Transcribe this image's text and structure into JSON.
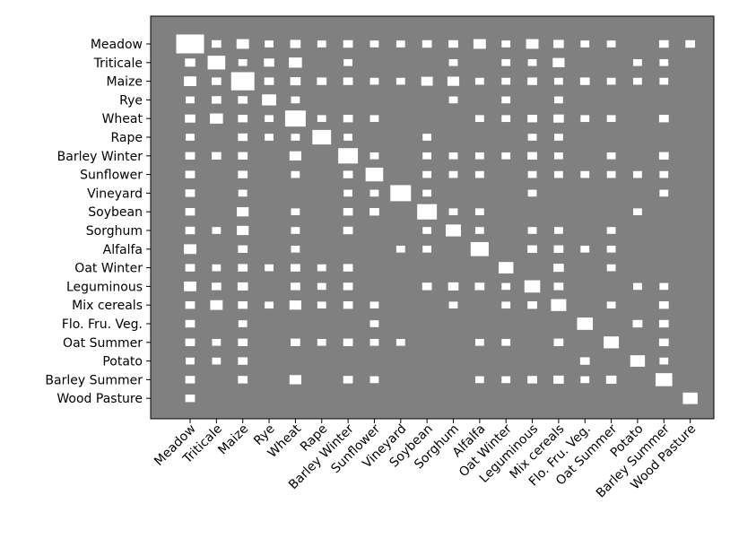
{
  "chart_data": {
    "type": "heatmap",
    "title": "",
    "xlabel": "",
    "ylabel": "",
    "categories": [
      "Meadow",
      "Triticale",
      "Maize",
      "Rye",
      "Wheat",
      "Rape",
      "Barley Winter",
      "Sunflower",
      "Vineyard",
      "Soybean",
      "Sorghum",
      "Alfalfa",
      "Oat Winter",
      "Leguminous",
      "Mix cereals",
      "Flo. Fru. Veg.",
      "Oat Summer",
      "Potato",
      "Barley Summer",
      "Wood Pasture"
    ],
    "x_tick_rotation_deg": 45,
    "background_color": "#808080",
    "mark_color": "#ffffff",
    "value_scale": "relative square area (1.0 = largest)",
    "cells": [
      {
        "row": "Meadow",
        "values": [
          1,
          0.12,
          0.2,
          0.1,
          0.14,
          0.1,
          0.12,
          0.1,
          0.1,
          0.12,
          0.12,
          0.2,
          0.1,
          0.2,
          0.14,
          0.1,
          0.1,
          0,
          0.12,
          0.12
        ]
      },
      {
        "row": "Triticale",
        "values": [
          0.14,
          0.4,
          0.1,
          0.14,
          0.22,
          0,
          0.1,
          0,
          0,
          0,
          0.1,
          0,
          0.1,
          0.1,
          0.18,
          0,
          0,
          0.1,
          0.1,
          0
        ]
      },
      {
        "row": "Maize",
        "values": [
          0.2,
          0.12,
          0.7,
          0.12,
          0.14,
          0.12,
          0.12,
          0.1,
          0.1,
          0.17,
          0.18,
          0.1,
          0.1,
          0.12,
          0.1,
          0.12,
          0.1,
          0.1,
          0.1,
          0
        ]
      },
      {
        "row": "Rye",
        "values": [
          0.1,
          0.12,
          0.12,
          0.26,
          0.1,
          0,
          0,
          0,
          0,
          0,
          0.1,
          0,
          0.1,
          0,
          0.1,
          0,
          0,
          0,
          0,
          0
        ]
      },
      {
        "row": "Wheat",
        "values": [
          0.14,
          0.22,
          0.12,
          0.1,
          0.55,
          0.1,
          0.12,
          0.1,
          0,
          0,
          0,
          0.1,
          0.1,
          0.12,
          0.14,
          0.1,
          0.1,
          0,
          0.12,
          0
        ]
      },
      {
        "row": "Rape",
        "values": [
          0.1,
          0,
          0.12,
          0.1,
          0.1,
          0.45,
          0.1,
          0,
          0,
          0.1,
          0,
          0,
          0,
          0.1,
          0.1,
          0,
          0,
          0,
          0,
          0
        ]
      },
      {
        "row": "Barley Winter",
        "values": [
          0.12,
          0.12,
          0.12,
          0,
          0.18,
          0,
          0.5,
          0.1,
          0,
          0.1,
          0.1,
          0.1,
          0.1,
          0.12,
          0.1,
          0,
          0.1,
          0,
          0.12,
          0
        ]
      },
      {
        "row": "Sunflower",
        "values": [
          0.12,
          0,
          0.12,
          0,
          0.1,
          0,
          0.12,
          0.4,
          0,
          0.1,
          0.1,
          0.1,
          0,
          0.1,
          0.1,
          0.1,
          0.1,
          0.1,
          0.1,
          0
        ]
      },
      {
        "row": "Vineyard",
        "values": [
          0.12,
          0,
          0.1,
          0,
          0,
          0,
          0.1,
          0.1,
          0.55,
          0.1,
          0,
          0,
          0,
          0.1,
          0,
          0,
          0,
          0,
          0.1,
          0
        ]
      },
      {
        "row": "Soybean",
        "values": [
          0.12,
          0,
          0.18,
          0,
          0.1,
          0,
          0.12,
          0.12,
          0,
          0.5,
          0.1,
          0.1,
          0,
          0,
          0,
          0,
          0,
          0.1,
          0,
          0
        ]
      },
      {
        "row": "Sorghum",
        "values": [
          0.12,
          0.1,
          0.18,
          0,
          0.1,
          0,
          0.12,
          0,
          0,
          0.1,
          0.3,
          0.1,
          0,
          0.1,
          0.1,
          0,
          0.1,
          0,
          0,
          0
        ]
      },
      {
        "row": "Alfalfa",
        "values": [
          0.2,
          0,
          0.12,
          0,
          0.1,
          0,
          0,
          0,
          0.1,
          0.1,
          0,
          0.42,
          0,
          0.12,
          0.12,
          0.1,
          0.1,
          0,
          0,
          0
        ]
      },
      {
        "row": "Oat Winter",
        "values": [
          0.12,
          0.1,
          0.12,
          0.1,
          0.12,
          0.1,
          0.12,
          0,
          0,
          0,
          0,
          0,
          0.28,
          0,
          0.14,
          0,
          0.1,
          0,
          0,
          0
        ]
      },
      {
        "row": "Leguminous",
        "values": [
          0.2,
          0.12,
          0.14,
          0,
          0.12,
          0.1,
          0.12,
          0,
          0,
          0.12,
          0.14,
          0.12,
          0.1,
          0.32,
          0.12,
          0,
          0,
          0.1,
          0.1,
          0
        ]
      },
      {
        "row": "Mix cereals",
        "values": [
          0.12,
          0.2,
          0.12,
          0.1,
          0.18,
          0.1,
          0.12,
          0.1,
          0,
          0,
          0.1,
          0,
          0.1,
          0.12,
          0.3,
          0,
          0.1,
          0,
          0.12,
          0
        ]
      },
      {
        "row": "Flo. Fru. Veg.",
        "values": [
          0.12,
          0,
          0.1,
          0,
          0,
          0,
          0,
          0.1,
          0,
          0,
          0,
          0,
          0,
          0,
          0,
          0.32,
          0,
          0.12,
          0.12,
          0
        ]
      },
      {
        "row": "Oat Summer",
        "values": [
          0.12,
          0.1,
          0.12,
          0,
          0.12,
          0.1,
          0.12,
          0.1,
          0.1,
          0,
          0,
          0.1,
          0.1,
          0,
          0.12,
          0,
          0.3,
          0,
          0.12,
          0
        ]
      },
      {
        "row": "Potato",
        "values": [
          0.1,
          0.1,
          0.12,
          0,
          0,
          0,
          0,
          0,
          0,
          0,
          0,
          0,
          0,
          0,
          0,
          0.12,
          0,
          0.28,
          0.1,
          0
        ]
      },
      {
        "row": "Barley Summer",
        "values": [
          0.12,
          0,
          0.12,
          0,
          0.18,
          0,
          0.12,
          0.1,
          0,
          0,
          0,
          0.1,
          0.1,
          0.12,
          0.14,
          0.1,
          0.14,
          0,
          0.36,
          0
        ]
      },
      {
        "row": "Wood Pasture",
        "values": [
          0.12,
          0,
          0,
          0,
          0,
          0,
          0,
          0,
          0,
          0,
          0,
          0,
          0,
          0,
          0,
          0,
          0,
          0,
          0,
          0.28
        ]
      }
    ]
  }
}
